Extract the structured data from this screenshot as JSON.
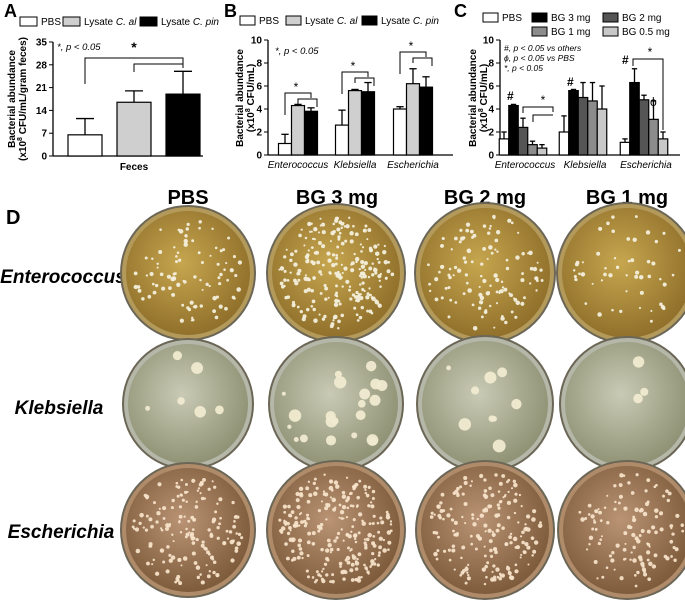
{
  "panel_labels": {
    "a": "A",
    "b": "B",
    "c": "C",
    "d": "D"
  },
  "colors": {
    "bar_pbs": "#ffffff",
    "bar_lysate_al": "#cfcfcf",
    "bar_lysate_pin": "#000000",
    "bg3": "#000000",
    "bg2": "#555555",
    "bg1": "#8c8c8c",
    "bg05": "#c8c8c8"
  },
  "chart_data": [
    {
      "id": "A",
      "type": "bar",
      "legend": [
        {
          "prefix": "PBS",
          "italic": ""
        },
        {
          "prefix": "Lysate ",
          "italic": "C. al"
        },
        {
          "prefix": "Lysate ",
          "italic": "C. pin"
        }
      ],
      "ylabel_line1": "Bacterial abundance",
      "ylabel_line2_a": "(x10",
      "ylabel_line2_sup": "8",
      "ylabel_line2_b": " CFU/mL/gram feces)",
      "ylim": [
        0,
        35
      ],
      "yticks": [
        "0",
        "7",
        "14",
        "21",
        "28",
        "35"
      ],
      "categories": [
        "Feces"
      ],
      "series": [
        {
          "name": "PBS",
          "values": [
            6.5
          ],
          "errors": [
            5
          ]
        },
        {
          "name": "Lysate C. al",
          "values": [
            16.5
          ],
          "errors": [
            3.5
          ]
        },
        {
          "name": "Lysate C. pin",
          "values": [
            19
          ],
          "errors": [
            7
          ]
        }
      ],
      "annotations": {
        "stat_note": "*, p < 0.05",
        "star": "*"
      }
    },
    {
      "id": "B",
      "type": "bar",
      "legend": [
        {
          "prefix": "PBS",
          "italic": ""
        },
        {
          "prefix": "Lysate ",
          "italic": "C. al"
        },
        {
          "prefix": "Lysate ",
          "italic": "C. pin"
        }
      ],
      "ylabel_line1": "Bacterial abundance",
      "ylabel_line2_a": "(x10",
      "ylabel_line2_sup": "8",
      "ylabel_line2_b": " CFU/mL)",
      "ylim": [
        0,
        10
      ],
      "yticks": [
        "0",
        "2",
        "4",
        "6",
        "8",
        "10"
      ],
      "categories": [
        "Enterococcus",
        "Klebsiella",
        "Escherichia"
      ],
      "series": [
        {
          "name": "PBS",
          "values": [
            1.0,
            2.6,
            4.0
          ],
          "errors": [
            0.8,
            1.3,
            0.2
          ]
        },
        {
          "name": "Lysate C. al",
          "values": [
            4.3,
            5.6,
            6.2
          ],
          "errors": [
            0.1,
            0.1,
            1.3
          ]
        },
        {
          "name": "Lysate C. pin",
          "values": [
            3.8,
            5.5,
            5.9
          ],
          "errors": [
            0.3,
            0.8,
            0.9
          ]
        }
      ],
      "annotations": {
        "stat_note": "*, p < 0.05",
        "star": "*"
      }
    },
    {
      "id": "C",
      "type": "bar",
      "legend": [
        {
          "prefix": "PBS",
          "italic": ""
        },
        {
          "prefix": "BG 3 mg",
          "italic": ""
        },
        {
          "prefix": "BG 2 mg",
          "italic": ""
        },
        {
          "prefix": "BG 1 mg",
          "italic": ""
        },
        {
          "prefix": "BG 0.5 mg",
          "italic": ""
        }
      ],
      "ylabel_line1": "Bacterial abundance",
      "ylabel_line2_a": "(x10",
      "ylabel_line2_sup": "8",
      "ylabel_line2_b": " CFU/mL)",
      "ylim": [
        0,
        10
      ],
      "yticks": [
        "0",
        "2",
        "4",
        "6",
        "8",
        "10"
      ],
      "categories": [
        "Enterococcus",
        "Klebsiella",
        "Escherichia"
      ],
      "series": [
        {
          "name": "PBS",
          "values": [
            1.4,
            2.0,
            1.1
          ],
          "errors": [
            0.6,
            1.4,
            0.3
          ]
        },
        {
          "name": "BG 3 mg",
          "values": [
            4.3,
            5.6,
            6.3
          ],
          "errors": [
            0.1,
            0.1,
            1.2
          ]
        },
        {
          "name": "BG 2 mg",
          "values": [
            2.4,
            5.0,
            4.8
          ],
          "errors": [
            0.8,
            1.3,
            0.4
          ]
        },
        {
          "name": "BG 1 mg",
          "values": [
            0.9,
            4.7,
            3.1
          ],
          "errors": [
            0.3,
            1.6,
            1.6
          ]
        },
        {
          "name": "BG 0.5 mg",
          "values": [
            0.6,
            4.0,
            1.4
          ],
          "errors": [
            0.3,
            2.0,
            0.6
          ]
        }
      ],
      "annotations": {
        "note1": "#, p < 0.05 vs others",
        "note2": "ϕ, p < 0.05 vs PBS",
        "note3": "*, p < 0.05",
        "hash": "#",
        "phi": "ϕ",
        "star": "*"
      }
    }
  ],
  "plates": {
    "columns": [
      "PBS",
      "BG 3 mg",
      "BG 2 mg",
      "BG 1 mg"
    ],
    "rows": [
      "Enterococcus",
      "Klebsiella",
      "Escherichia"
    ],
    "colony_density": [
      [
        0.35,
        0.9,
        0.45,
        0.2
      ],
      [
        0.1,
        0.35,
        0.15,
        0.05
      ],
      [
        0.6,
        0.95,
        0.7,
        0.45
      ]
    ]
  }
}
